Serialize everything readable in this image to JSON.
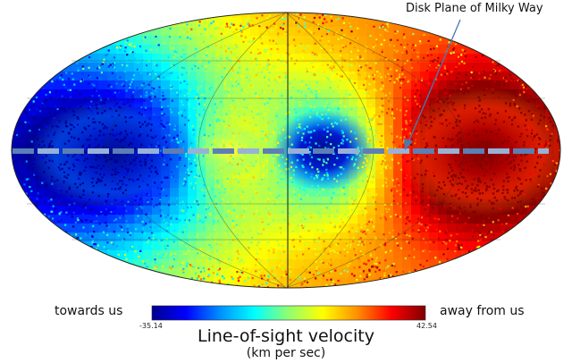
{
  "annotation": "Disk Plane of Milky Way",
  "colorbar": {
    "min_label": "-35.14",
    "max_label": "42.54",
    "min_value": -35.14,
    "max_value": 42.54,
    "left_label": "towards us",
    "right_label": "away from us",
    "colormap": "jet",
    "stops": [
      "#00008f",
      "#0000ff",
      "#0090ff",
      "#00ffff",
      "#90ff70",
      "#ffff00",
      "#ff9000",
      "#ff0000",
      "#800000"
    ]
  },
  "title": "Line-of-sight velocity",
  "subtitle": "(km per sec)",
  "projection": "mollweide",
  "disk_plane": {
    "line_style": "dashed",
    "colors": [
      "#5b7fb6",
      "#97b2d6"
    ]
  },
  "map_colors": {
    "outline": "#222222",
    "graticule": "#2a2a2a",
    "arrow": "#4a78b0"
  }
}
